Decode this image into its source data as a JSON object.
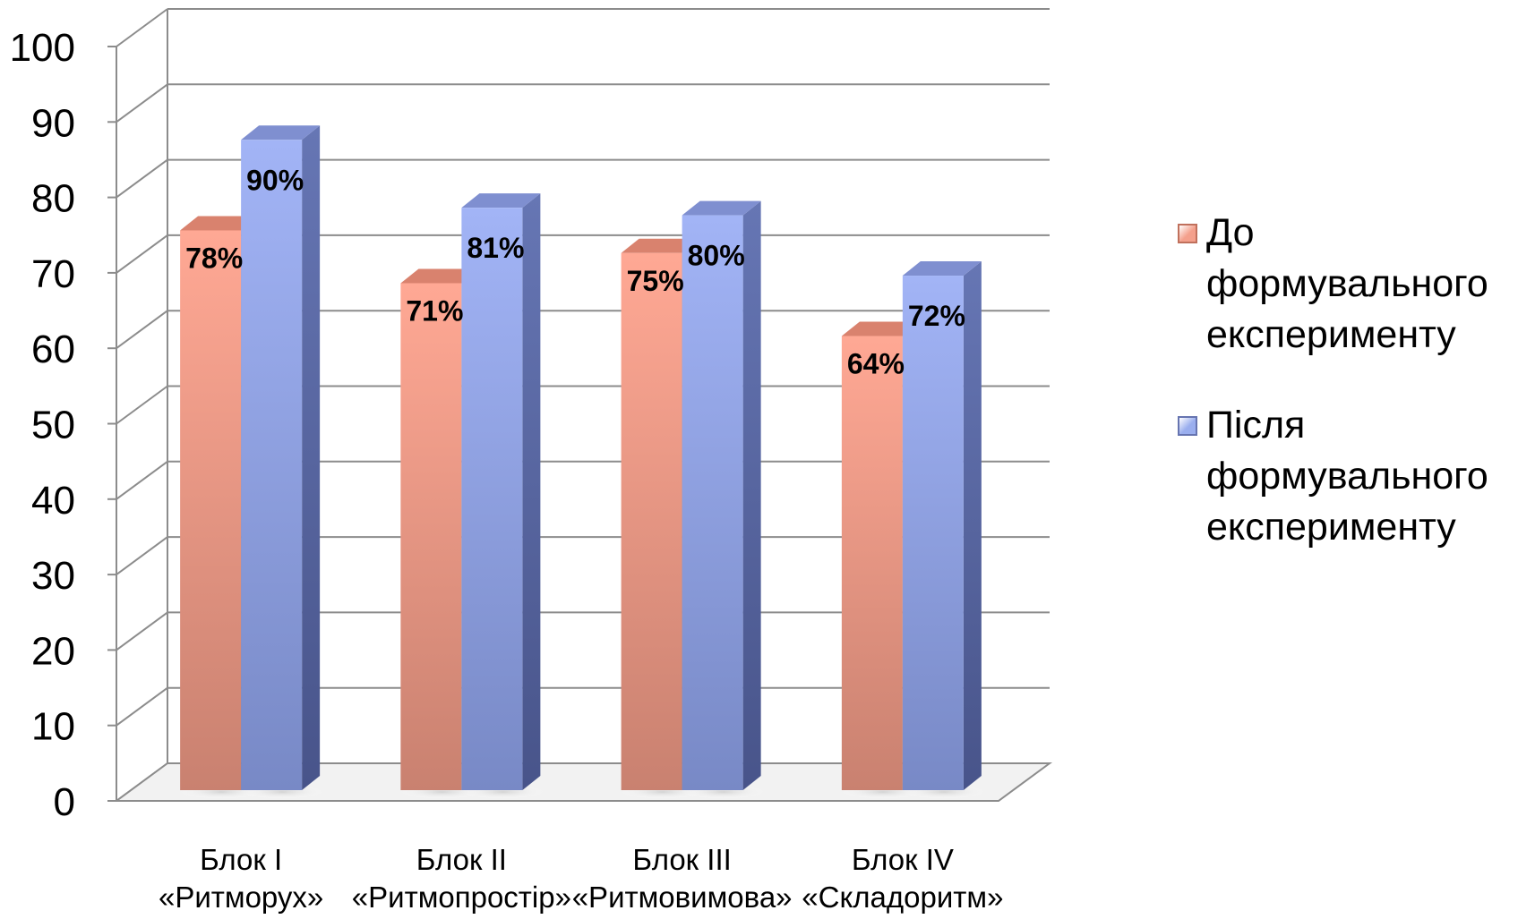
{
  "chart_data": {
    "type": "bar",
    "categories": [
      [
        "Блок I",
        "«Ритморух»"
      ],
      [
        "Блок II",
        "«Ритмопростір»"
      ],
      [
        "Блок III",
        "«Ритмовимова»"
      ],
      [
        "Блок IV",
        "«Складоритм»"
      ]
    ],
    "series": [
      {
        "name": "До формувального експерименту",
        "values": [
          78,
          71,
          75,
          64
        ],
        "labels": [
          "78%",
          "71%",
          "75%",
          "64%"
        ],
        "color": "#f4a08c"
      },
      {
        "name": "Після формувального експерименту",
        "values": [
          90,
          81,
          80,
          72
        ],
        "labels": [
          "90%",
          "81%",
          "80%",
          "72%"
        ],
        "color": "#9aaeee"
      }
    ],
    "yticks": [
      "0",
      "10",
      "20",
      "30",
      "40",
      "50",
      "60",
      "70",
      "80",
      "90",
      "100"
    ],
    "ylim": [
      0,
      100
    ],
    "grid": true,
    "legend_position": "right",
    "style": "3d-clustered-column"
  }
}
